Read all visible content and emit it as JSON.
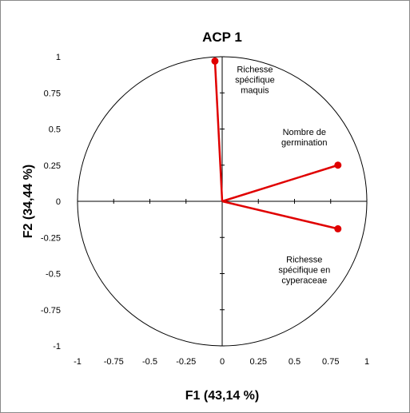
{
  "chart_data": {
    "type": "scatter",
    "title": "ACP 1",
    "xlabel": "F1 (43,14 %)",
    "ylabel": "F2 (34,44 %)",
    "xlim": [
      -1,
      1
    ],
    "ylim": [
      -1,
      1
    ],
    "x_ticks": [
      "-1",
      "-0.75",
      "-0.5",
      "-0.25",
      "0",
      "0.25",
      "0.5",
      "0.75",
      "1"
    ],
    "y_ticks": [
      "1",
      "0.75",
      "0.5",
      "0.25",
      "0",
      "-0.25",
      "-0.5",
      "-0.75",
      "-1"
    ],
    "grid": false,
    "unit_circle": true,
    "vector_color": "#e00000",
    "points": [
      {
        "label_lines": [
          "Richesse",
          "spécifique",
          "maquis"
        ],
        "x": -0.05,
        "y": 0.97
      },
      {
        "label_lines": [
          "Nombre de",
          "germination"
        ],
        "x": 0.8,
        "y": 0.25
      },
      {
        "label_lines": [
          "Richesse",
          "spécifique en",
          "cyperaceae"
        ],
        "x": 0.8,
        "y": -0.19
      }
    ]
  }
}
